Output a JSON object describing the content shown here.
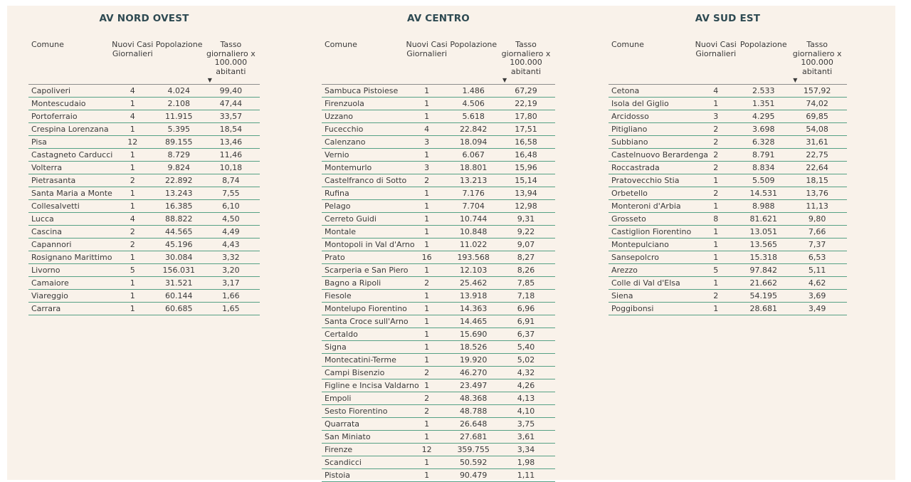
{
  "ui": {
    "sort_icon": "▼",
    "page_background": "#ffffff",
    "panel_background": "#f9f2ea",
    "title_color": "#2e4a52",
    "row_border_color": "#56a185",
    "header_border_color": "#8d8d8d",
    "text_color": "#3a3a3a"
  },
  "chart_data": [
    {
      "type": "table",
      "title": "AV NORD OVEST",
      "columns": [
        "Comune",
        "Nuovi Casi Giornalieri",
        "Popolazione",
        "Tasso giornaliero x 100.000 abitanti"
      ],
      "sorted_column": "Tasso giornaliero x 100.000 abitanti",
      "sort_direction": "descending",
      "rows": [
        [
          "Capoliveri",
          "4",
          "4.024",
          "99,40"
        ],
        [
          "Montescudaio",
          "1",
          "2.108",
          "47,44"
        ],
        [
          "Portoferraio",
          "4",
          "11.915",
          "33,57"
        ],
        [
          "Crespina Lorenzana",
          "1",
          "5.395",
          "18,54"
        ],
        [
          "Pisa",
          "12",
          "89.155",
          "13,46"
        ],
        [
          "Castagneto Carducci",
          "1",
          "8.729",
          "11,46"
        ],
        [
          "Volterra",
          "1",
          "9.824",
          "10,18"
        ],
        [
          "Pietrasanta",
          "2",
          "22.892",
          "8,74"
        ],
        [
          "Santa Maria a Monte",
          "1",
          "13.243",
          "7,55"
        ],
        [
          "Collesalvetti",
          "1",
          "16.385",
          "6,10"
        ],
        [
          "Lucca",
          "4",
          "88.822",
          "4,50"
        ],
        [
          "Cascina",
          "2",
          "44.565",
          "4,49"
        ],
        [
          "Capannori",
          "2",
          "45.196",
          "4,43"
        ],
        [
          "Rosignano Marittimo",
          "1",
          "30.084",
          "3,32"
        ],
        [
          "Livorno",
          "5",
          "156.031",
          "3,20"
        ],
        [
          "Camaiore",
          "1",
          "31.521",
          "3,17"
        ],
        [
          "Viareggio",
          "1",
          "60.144",
          "1,66"
        ],
        [
          "Carrara",
          "1",
          "60.685",
          "1,65"
        ]
      ]
    },
    {
      "type": "table",
      "title": "AV CENTRO",
      "columns": [
        "Comune",
        "Nuovi Casi Giornalieri",
        "Popolazione",
        "Tasso giornaliero x 100.000 abitanti"
      ],
      "sorted_column": "Tasso giornaliero x 100.000 abitanti",
      "sort_direction": "descending",
      "rows": [
        [
          "Sambuca Pistoiese",
          "1",
          "1.486",
          "67,29"
        ],
        [
          "Firenzuola",
          "1",
          "4.506",
          "22,19"
        ],
        [
          "Uzzano",
          "1",
          "5.618",
          "17,80"
        ],
        [
          "Fucecchio",
          "4",
          "22.842",
          "17,51"
        ],
        [
          "Calenzano",
          "3",
          "18.094",
          "16,58"
        ],
        [
          "Vernio",
          "1",
          "6.067",
          "16,48"
        ],
        [
          "Montemurlo",
          "3",
          "18.801",
          "15,96"
        ],
        [
          "Castelfranco di Sotto",
          "2",
          "13.213",
          "15,14"
        ],
        [
          "Rufina",
          "1",
          "7.176",
          "13,94"
        ],
        [
          "Pelago",
          "1",
          "7.704",
          "12,98"
        ],
        [
          "Cerreto Guidi",
          "1",
          "10.744",
          "9,31"
        ],
        [
          "Montale",
          "1",
          "10.848",
          "9,22"
        ],
        [
          "Montopoli in Val d'Arno",
          "1",
          "11.022",
          "9,07"
        ],
        [
          "Prato",
          "16",
          "193.568",
          "8,27"
        ],
        [
          "Scarperia e San Piero",
          "1",
          "12.103",
          "8,26"
        ],
        [
          "Bagno a Ripoli",
          "2",
          "25.462",
          "7,85"
        ],
        [
          "Fiesole",
          "1",
          "13.918",
          "7,18"
        ],
        [
          "Montelupo Fiorentino",
          "1",
          "14.363",
          "6,96"
        ],
        [
          "Santa Croce sull'Arno",
          "1",
          "14.465",
          "6,91"
        ],
        [
          "Certaldo",
          "1",
          "15.690",
          "6,37"
        ],
        [
          "Signa",
          "1",
          "18.526",
          "5,40"
        ],
        [
          "Montecatini-Terme",
          "1",
          "19.920",
          "5,02"
        ],
        [
          "Campi Bisenzio",
          "2",
          "46.270",
          "4,32"
        ],
        [
          "Figline e Incisa Valdarno",
          "1",
          "23.497",
          "4,26"
        ],
        [
          "Empoli",
          "2",
          "48.368",
          "4,13"
        ],
        [
          "Sesto Fiorentino",
          "2",
          "48.788",
          "4,10"
        ],
        [
          "Quarrata",
          "1",
          "26.648",
          "3,75"
        ],
        [
          "San Miniato",
          "1",
          "27.681",
          "3,61"
        ],
        [
          "Firenze",
          "12",
          "359.755",
          "3,34"
        ],
        [
          "Scandicci",
          "1",
          "50.592",
          "1,98"
        ],
        [
          "Pistoia",
          "1",
          "90.479",
          "1,11"
        ]
      ]
    },
    {
      "type": "table",
      "title": "AV SUD EST",
      "columns": [
        "Comune",
        "Nuovi Casi Giornalieri",
        "Popolazione",
        "Tasso giornaliero x 100.000 abitanti"
      ],
      "sorted_column": "Tasso giornaliero x 100.000 abitanti",
      "sort_direction": "descending",
      "rows": [
        [
          "Cetona",
          "4",
          "2.533",
          "157,92"
        ],
        [
          "Isola del Giglio",
          "1",
          "1.351",
          "74,02"
        ],
        [
          "Arcidosso",
          "3",
          "4.295",
          "69,85"
        ],
        [
          "Pitigliano",
          "2",
          "3.698",
          "54,08"
        ],
        [
          "Subbiano",
          "2",
          "6.328",
          "31,61"
        ],
        [
          "Castelnuovo Berardenga",
          "2",
          "8.791",
          "22,75"
        ],
        [
          "Roccastrada",
          "2",
          "8.834",
          "22,64"
        ],
        [
          "Pratovecchio Stia",
          "1",
          "5.509",
          "18,15"
        ],
        [
          "Orbetello",
          "2",
          "14.531",
          "13,76"
        ],
        [
          "Monteroni d'Arbia",
          "1",
          "8.988",
          "11,13"
        ],
        [
          "Grosseto",
          "8",
          "81.621",
          "9,80"
        ],
        [
          "Castiglion Fiorentino",
          "1",
          "13.051",
          "7,66"
        ],
        [
          "Montepulciano",
          "1",
          "13.565",
          "7,37"
        ],
        [
          "Sansepolcro",
          "1",
          "15.318",
          "6,53"
        ],
        [
          "Arezzo",
          "5",
          "97.842",
          "5,11"
        ],
        [
          "Colle di Val d'Elsa",
          "1",
          "21.662",
          "4,62"
        ],
        [
          "Siena",
          "2",
          "54.195",
          "3,69"
        ],
        [
          "Poggibonsi",
          "1",
          "28.681",
          "3,49"
        ]
      ]
    }
  ]
}
